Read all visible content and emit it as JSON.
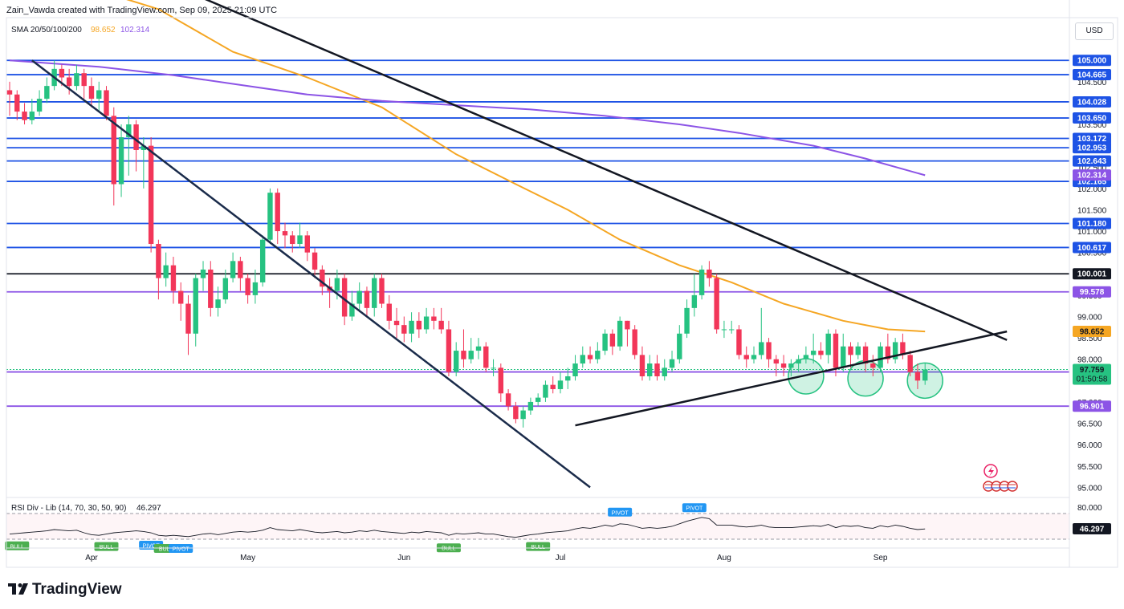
{
  "header": {
    "attribution": "Zain_Vawda created with TradingView.com, Sep 09, 2025 21:09 UTC"
  },
  "legend": {
    "sma_label": "SMA 20/50/100/200",
    "sma_value_1": "98.652",
    "sma_value_2": "102.314",
    "rsi_label": "RSI Div - Lib (14, 70, 30, 50, 90)",
    "rsi_value": "46.297"
  },
  "currency_button": "USD",
  "logo": "TradingView",
  "colors": {
    "bull": "#26c281",
    "bear": "#f23659",
    "sma_orange": "#f5a623",
    "sma_purple": "#8c54e6",
    "level_blue": "#1e53e5",
    "level_purple": "#8c54e6",
    "trendline": "#131722"
  },
  "chart_data": {
    "type": "candlestick",
    "instrument": "USD",
    "y_range": [
      94.8,
      106.0
    ],
    "price_ticks": [
      "104.500",
      "104.000",
      "103.500",
      "103.000",
      "102.500",
      "102.000",
      "101.500",
      "101.000",
      "100.500",
      "100.000",
      "99.500",
      "99.000",
      "98.500",
      "98.000",
      "97.500",
      "97.000",
      "96.500",
      "96.000",
      "95.500",
      "95.000"
    ],
    "x_tick_labels": [
      {
        "label": "Apr",
        "index": 11
      },
      {
        "label": "May",
        "index": 32
      },
      {
        "label": "Jun",
        "index": 53
      },
      {
        "label": "Jul",
        "index": 74
      },
      {
        "label": "Aug",
        "index": 96
      },
      {
        "label": "Sep",
        "index": 117
      }
    ],
    "candles": [
      [
        104.3,
        104.2,
        104.5,
        103.7
      ],
      [
        104.2,
        103.8,
        104.3,
        103.6
      ],
      [
        103.8,
        103.6,
        104.0,
        103.5
      ],
      [
        103.6,
        103.8,
        104.1,
        103.5
      ],
      [
        103.8,
        104.1,
        104.3,
        103.7
      ],
      [
        104.1,
        104.4,
        104.6,
        104.0
      ],
      [
        104.4,
        104.8,
        105.0,
        104.3
      ],
      [
        104.8,
        104.6,
        104.9,
        104.4
      ],
      [
        104.6,
        104.4,
        104.8,
        104.2
      ],
      [
        104.4,
        104.7,
        104.9,
        104.3
      ],
      [
        104.7,
        104.4,
        104.8,
        104.1
      ],
      [
        104.4,
        104.1,
        104.6,
        103.9
      ],
      [
        104.1,
        104.3,
        104.5,
        103.8
      ],
      [
        104.3,
        103.7,
        104.4,
        103.6
      ],
      [
        103.7,
        102.1,
        103.9,
        101.6
      ],
      [
        102.1,
        103.2,
        103.5,
        101.8
      ],
      [
        103.2,
        103.5,
        103.7,
        102.3
      ],
      [
        103.5,
        102.9,
        103.6,
        102.4
      ],
      [
        102.9,
        103.0,
        103.2,
        102.0
      ],
      [
        103.0,
        100.7,
        103.2,
        100.5
      ],
      [
        100.7,
        99.9,
        100.8,
        99.4
      ],
      [
        99.9,
        100.2,
        100.5,
        99.7
      ],
      [
        100.2,
        99.6,
        100.4,
        99.3
      ],
      [
        99.6,
        99.3,
        99.8,
        98.9
      ],
      [
        99.3,
        98.6,
        99.5,
        98.1
      ],
      [
        98.6,
        99.9,
        100.0,
        98.3
      ],
      [
        99.9,
        100.1,
        100.3,
        99.6
      ],
      [
        100.1,
        99.2,
        100.3,
        99.0
      ],
      [
        99.2,
        99.4,
        99.7,
        99.0
      ],
      [
        99.4,
        99.9,
        100.1,
        99.3
      ],
      [
        99.9,
        100.3,
        100.5,
        99.8
      ],
      [
        100.3,
        99.9,
        100.4,
        99.6
      ],
      [
        99.9,
        99.5,
        100.0,
        99.3
      ],
      [
        99.5,
        99.8,
        100.1,
        99.3
      ],
      [
        99.8,
        100.8,
        100.9,
        99.7
      ],
      [
        100.8,
        101.9,
        102.0,
        100.7
      ],
      [
        101.9,
        101.0,
        102.0,
        100.7
      ],
      [
        101.0,
        100.9,
        101.2,
        100.6
      ],
      [
        100.9,
        100.7,
        101.0,
        100.5
      ],
      [
        100.7,
        100.9,
        101.2,
        100.6
      ],
      [
        100.9,
        100.5,
        101.0,
        100.3
      ],
      [
        100.5,
        100.1,
        100.6,
        99.9
      ],
      [
        100.1,
        99.7,
        100.2,
        99.5
      ],
      [
        99.7,
        99.6,
        99.9,
        99.2
      ],
      [
        99.6,
        99.9,
        100.1,
        99.4
      ],
      [
        99.9,
        99.0,
        100.0,
        98.8
      ],
      [
        99.0,
        99.3,
        99.6,
        98.9
      ],
      [
        99.3,
        99.6,
        99.8,
        99.1
      ],
      [
        99.6,
        99.2,
        99.7,
        99.0
      ],
      [
        99.2,
        99.9,
        100.0,
        99.0
      ],
      [
        99.9,
        99.3,
        100.0,
        99.2
      ],
      [
        99.3,
        98.9,
        99.5,
        98.7
      ],
      [
        98.9,
        98.8,
        99.2,
        98.5
      ],
      [
        98.8,
        98.6,
        99.0,
        98.4
      ],
      [
        98.6,
        98.9,
        99.1,
        98.4
      ],
      [
        98.9,
        98.7,
        99.1,
        98.5
      ],
      [
        98.7,
        99.0,
        99.2,
        98.6
      ],
      [
        99.0,
        98.9,
        99.2,
        98.7
      ],
      [
        98.9,
        98.7,
        99.2,
        98.6
      ],
      [
        98.7,
        97.7,
        98.9,
        97.6
      ],
      [
        97.7,
        98.2,
        98.4,
        97.6
      ],
      [
        98.2,
        98.0,
        98.7,
        97.8
      ],
      [
        98.0,
        98.2,
        98.5,
        97.9
      ],
      [
        98.2,
        98.3,
        98.5,
        98.0
      ],
      [
        98.3,
        97.8,
        98.4,
        97.7
      ],
      [
        97.8,
        97.8,
        98.0,
        97.6
      ],
      [
        97.8,
        97.2,
        97.9,
        97.0
      ],
      [
        97.2,
        96.9,
        97.3,
        96.8
      ],
      [
        96.9,
        96.6,
        97.0,
        96.5
      ],
      [
        96.6,
        96.8,
        96.9,
        96.4
      ],
      [
        96.8,
        97.0,
        97.1,
        96.7
      ],
      [
        97.0,
        97.1,
        97.2,
        96.9
      ],
      [
        97.1,
        97.4,
        97.5,
        97.0
      ],
      [
        97.4,
        97.3,
        97.6,
        97.2
      ],
      [
        97.3,
        97.5,
        97.7,
        97.2
      ],
      [
        97.5,
        97.6,
        97.8,
        97.3
      ],
      [
        97.6,
        97.9,
        98.1,
        97.5
      ],
      [
        97.9,
        98.1,
        98.3,
        97.8
      ],
      [
        98.1,
        98.0,
        98.3,
        97.9
      ],
      [
        98.0,
        98.2,
        98.4,
        97.9
      ],
      [
        98.2,
        98.6,
        98.7,
        98.1
      ],
      [
        98.6,
        98.3,
        98.7,
        98.1
      ],
      [
        98.3,
        98.9,
        99.0,
        98.2
      ],
      [
        98.9,
        98.7,
        98.9,
        98.3
      ],
      [
        98.7,
        98.1,
        98.8,
        98.0
      ],
      [
        98.1,
        97.6,
        98.3,
        97.5
      ],
      [
        97.6,
        97.9,
        98.1,
        97.5
      ],
      [
        97.9,
        97.6,
        98.1,
        97.5
      ],
      [
        97.6,
        97.8,
        98.0,
        97.5
      ],
      [
        97.8,
        98.0,
        98.2,
        97.7
      ],
      [
        98.0,
        98.6,
        98.8,
        97.9
      ],
      [
        98.6,
        99.2,
        99.4,
        98.5
      ],
      [
        99.2,
        99.5,
        100.0,
        99.0
      ],
      [
        99.5,
        100.1,
        100.2,
        99.4
      ],
      [
        100.1,
        99.9,
        100.3,
        99.7
      ],
      [
        99.9,
        98.7,
        100.0,
        98.6
      ],
      [
        98.7,
        98.7,
        98.9,
        98.5
      ],
      [
        98.7,
        98.7,
        98.9,
        98.6
      ],
      [
        98.7,
        98.1,
        98.8,
        98.0
      ],
      [
        98.1,
        98.0,
        98.3,
        97.8
      ],
      [
        98.0,
        98.1,
        98.3,
        97.9
      ],
      [
        98.1,
        98.4,
        99.2,
        98.0
      ],
      [
        98.4,
        98.0,
        98.5,
        97.8
      ],
      [
        98.0,
        97.9,
        98.1,
        97.6
      ],
      [
        97.9,
        97.8,
        98.1,
        97.6
      ],
      [
        97.8,
        97.9,
        98.0,
        97.6
      ],
      [
        97.9,
        98.0,
        98.1,
        97.7
      ],
      [
        98.0,
        98.1,
        98.3,
        97.9
      ],
      [
        98.1,
        98.2,
        98.6,
        97.9
      ],
      [
        98.2,
        98.1,
        98.4,
        98.0
      ],
      [
        98.1,
        98.6,
        98.7,
        97.9
      ],
      [
        98.6,
        97.8,
        98.7,
        97.6
      ],
      [
        97.8,
        98.3,
        98.6,
        97.7
      ],
      [
        98.3,
        98.1,
        98.4,
        97.8
      ],
      [
        98.1,
        98.3,
        98.4,
        98.0
      ],
      [
        98.3,
        97.9,
        98.4,
        97.7
      ],
      [
        97.9,
        97.8,
        98.1,
        97.6
      ],
      [
        97.8,
        98.3,
        98.4,
        97.7
      ],
      [
        98.3,
        98.0,
        98.6,
        97.9
      ],
      [
        98.0,
        98.4,
        98.5,
        97.9
      ],
      [
        98.4,
        98.1,
        98.6,
        98.0
      ],
      [
        98.1,
        97.7,
        98.2,
        97.6
      ],
      [
        97.7,
        97.5,
        97.9,
        97.3
      ],
      [
        97.5,
        97.76,
        97.9,
        97.4
      ]
    ],
    "horizontal_levels": [
      {
        "value": 105.0,
        "label": "105.000",
        "color": "#1e53e5"
      },
      {
        "value": 104.665,
        "label": "104.665",
        "color": "#1e53e5"
      },
      {
        "value": 104.028,
        "label": "104.028",
        "color": "#1e53e5"
      },
      {
        "value": 103.65,
        "label": "103.650",
        "color": "#1e53e5"
      },
      {
        "value": 103.172,
        "label": "103.172",
        "color": "#1e53e5"
      },
      {
        "value": 102.953,
        "label": "102.953",
        "color": "#1e53e5"
      },
      {
        "value": 102.643,
        "label": "102.643",
        "color": "#1e53e5"
      },
      {
        "value": 102.165,
        "label": "102.165",
        "color": "#1e53e5"
      },
      {
        "value": 101.18,
        "label": "101.180",
        "color": "#1e53e5"
      },
      {
        "value": 100.617,
        "label": "100.617",
        "color": "#1e53e5"
      },
      {
        "value": 100.001,
        "label": "100.001",
        "color": "#131722"
      },
      {
        "value": 99.578,
        "label": "99.578",
        "color": "#8c54e6"
      },
      {
        "value": 97.702,
        "label": "97.702",
        "color": "#8c54e6"
      },
      {
        "value": 96.901,
        "label": "96.901",
        "color": "#8c54e6"
      }
    ],
    "price_tags": [
      {
        "value": 102.314,
        "label": "102.314",
        "bg": "#8c54e6",
        "fg": "#ffffff"
      },
      {
        "value": 98.652,
        "label": "98.652",
        "bg": "#f5a623",
        "fg": "#131722"
      },
      {
        "value": 97.759,
        "label": "97.759",
        "sub": "01:50:58",
        "bg": "#26c281",
        "fg": "#131722"
      }
    ],
    "sma_orange": [
      [
        7,
        106.9
      ],
      [
        20,
        106.2
      ],
      [
        30,
        105.2
      ],
      [
        40,
        104.6
      ],
      [
        50,
        103.9
      ],
      [
        60,
        102.8
      ],
      [
        68,
        102.1
      ],
      [
        75,
        101.5
      ],
      [
        82,
        100.8
      ],
      [
        90,
        100.2
      ],
      [
        97,
        99.8
      ],
      [
        104,
        99.3
      ],
      [
        112,
        98.9
      ],
      [
        118,
        98.7
      ],
      [
        123,
        98.65
      ]
    ],
    "sma_purple": [
      [
        0,
        105.0
      ],
      [
        12,
        104.85
      ],
      [
        22,
        104.65
      ],
      [
        30,
        104.45
      ],
      [
        40,
        104.2
      ],
      [
        50,
        104.05
      ],
      [
        60,
        103.95
      ],
      [
        70,
        103.85
      ],
      [
        80,
        103.7
      ],
      [
        90,
        103.5
      ],
      [
        98,
        103.3
      ],
      [
        108,
        103.0
      ],
      [
        115,
        102.7
      ],
      [
        123,
        102.31
      ]
    ],
    "trendlines": [
      {
        "from": [
          3,
          105.0
        ],
        "to": [
          78,
          95.0
        ],
        "color": "#1a2b4a"
      },
      {
        "from": [
          20,
          106.9
        ],
        "to": [
          134,
          98.45
        ],
        "color": "#131722"
      },
      {
        "from": [
          76,
          96.45
        ],
        "to": [
          134,
          98.65
        ],
        "color": "#131722"
      }
    ],
    "circles": [
      [
        107,
        97.6
      ],
      [
        115,
        97.55
      ],
      [
        123,
        97.5
      ]
    ],
    "rsi": {
      "label": "RSI Div - Lib (14, 70, 30, 50, 90)",
      "value": "46.297",
      "ticks": [
        "80.000",
        "46.297"
      ],
      "values": [
        38,
        39,
        40,
        41,
        42,
        43,
        45,
        44,
        43,
        44,
        40,
        37,
        36,
        38,
        40,
        41,
        42,
        43,
        42,
        40,
        36,
        35,
        36,
        35,
        34,
        36,
        38,
        39,
        37,
        39,
        41,
        42,
        41,
        42,
        44,
        48,
        45,
        44,
        43,
        45,
        43,
        41,
        40,
        41,
        42,
        40,
        41,
        43,
        42,
        44,
        42,
        41,
        40,
        39,
        41,
        40,
        42,
        41,
        40,
        36,
        39,
        38,
        39,
        40,
        38,
        38,
        36,
        34,
        33,
        35,
        37,
        38,
        40,
        41,
        42,
        43,
        46,
        48,
        47,
        49,
        52,
        50,
        54,
        53,
        50,
        47,
        48,
        47,
        48,
        50,
        54,
        58,
        61,
        64,
        62,
        52,
        52,
        52,
        50,
        49,
        50,
        52,
        49,
        48,
        48,
        48,
        49,
        50,
        51,
        50,
        53,
        48,
        51,
        50,
        51,
        48,
        47,
        51,
        49,
        52,
        50,
        47,
        45,
        46
      ],
      "markers": [
        {
          "index": 1,
          "label": "BULL",
          "color": "#4caf50",
          "pos": "below"
        },
        {
          "index": 13,
          "label": "BULL",
          "color": "#4caf50",
          "pos": "below"
        },
        {
          "index": 19,
          "label": "PIVOT",
          "color": "#2196f3",
          "pos": "below"
        },
        {
          "index": 21,
          "label": "BULL",
          "color": "#4caf50",
          "pos": "below"
        },
        {
          "index": 23,
          "label": "PIVOT",
          "color": "#2196f3",
          "pos": "below"
        },
        {
          "index": 59,
          "label": "BULL",
          "color": "#4caf50",
          "pos": "below"
        },
        {
          "index": 71,
          "label": "BULL",
          "color": "#4caf50",
          "pos": "below"
        },
        {
          "index": 82,
          "label": "PIVOT",
          "color": "#2196f3",
          "pos": "above"
        },
        {
          "index": 92,
          "label": "PIVOT",
          "color": "#2196f3",
          "pos": "above"
        }
      ]
    }
  }
}
